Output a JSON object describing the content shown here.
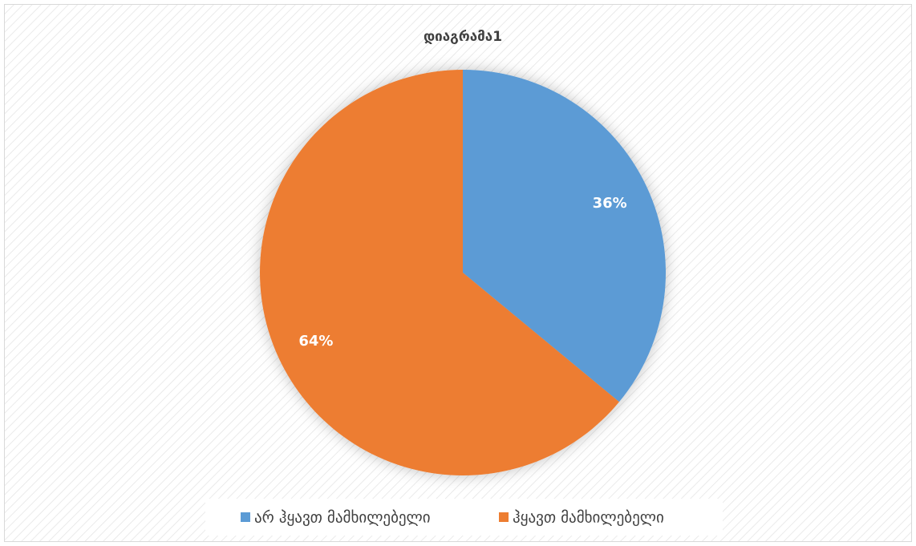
{
  "chart_data": {
    "type": "pie",
    "title": "დიაგრამა1",
    "categories": [
      "არ ჰყავთ მამხილებელი",
      "ჰყავთ მამხილებელი"
    ],
    "values": [
      36,
      64
    ],
    "value_labels": [
      "36%",
      "64%"
    ],
    "colors": [
      "#5b9bd5",
      "#ed7d31"
    ],
    "legend": "bottom"
  }
}
